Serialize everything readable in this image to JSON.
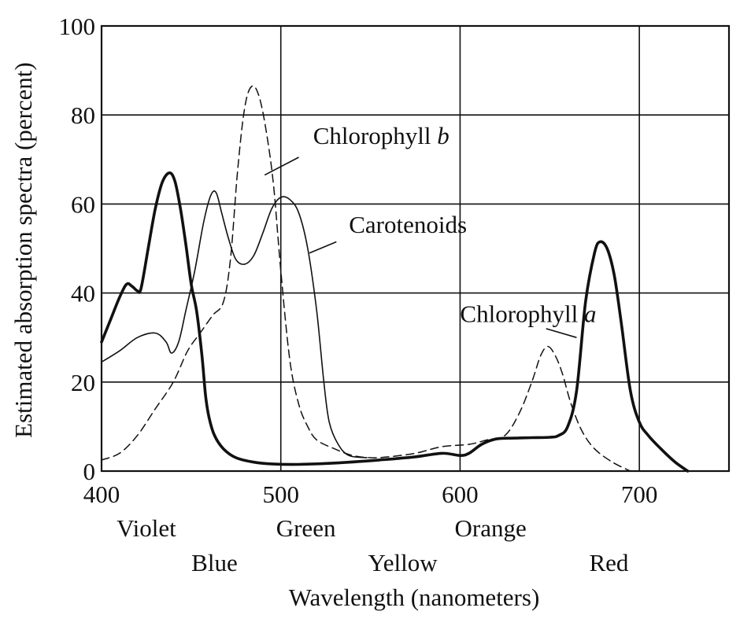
{
  "chart_data": {
    "type": "line",
    "xlabel": "Wavelength (nanometers)",
    "ylabel": "Estimated absorption spectra (percent)",
    "xlim": [
      400,
      750
    ],
    "ylim": [
      0,
      100
    ],
    "x_ticks": [
      400,
      500,
      600,
      700
    ],
    "y_ticks": [
      0,
      20,
      40,
      60,
      80,
      100
    ],
    "grid": true,
    "color_bands": {
      "row1": [
        {
          "label": "Violet",
          "x": 425
        },
        {
          "label": "Green",
          "x": 514
        },
        {
          "label": "Orange",
          "x": 617
        }
      ],
      "row2": [
        {
          "label": "Blue",
          "x": 463
        },
        {
          "label": "Yellow",
          "x": 568
        },
        {
          "label": "Red",
          "x": 683
        }
      ]
    },
    "series": [
      {
        "name": "Chlorophyll a",
        "name_main": "Chlorophyll ",
        "name_italic": "a",
        "style": "thick-solid",
        "color": "#111111",
        "points": [
          [
            400,
            29
          ],
          [
            405,
            34
          ],
          [
            410,
            39
          ],
          [
            414,
            42
          ],
          [
            417,
            41.5
          ],
          [
            420,
            40.5
          ],
          [
            422,
            41
          ],
          [
            426,
            50
          ],
          [
            430,
            59
          ],
          [
            434,
            65
          ],
          [
            438,
            67
          ],
          [
            441,
            65
          ],
          [
            444,
            59
          ],
          [
            447,
            51
          ],
          [
            450,
            42
          ],
          [
            453,
            36
          ],
          [
            456,
            26
          ],
          [
            458,
            17
          ],
          [
            460,
            12
          ],
          [
            463,
            8
          ],
          [
            468,
            5
          ],
          [
            475,
            3
          ],
          [
            485,
            2
          ],
          [
            495,
            1.6
          ],
          [
            510,
            1.5
          ],
          [
            530,
            1.8
          ],
          [
            555,
            2.5
          ],
          [
            575,
            3.2
          ],
          [
            590,
            4
          ],
          [
            600,
            3.5
          ],
          [
            605,
            4
          ],
          [
            612,
            6
          ],
          [
            620,
            7.2
          ],
          [
            630,
            7.4
          ],
          [
            640,
            7.5
          ],
          [
            650,
            7.6
          ],
          [
            655,
            8
          ],
          [
            660,
            10
          ],
          [
            665,
            18
          ],
          [
            670,
            38
          ],
          [
            675,
            49
          ],
          [
            678,
            51.5
          ],
          [
            682,
            50
          ],
          [
            686,
            44
          ],
          [
            690,
            33
          ],
          [
            695,
            18
          ],
          [
            700,
            11
          ],
          [
            705,
            8
          ],
          [
            712,
            5
          ],
          [
            720,
            2
          ],
          [
            727,
            0
          ]
        ]
      },
      {
        "name": "Chlorophyll b",
        "name_main": "Chlorophyll ",
        "name_italic": "b",
        "style": "dashed",
        "color": "#111111",
        "points": [
          [
            400,
            2.5
          ],
          [
            410,
            4
          ],
          [
            420,
            8
          ],
          [
            430,
            14
          ],
          [
            440,
            20
          ],
          [
            448,
            27
          ],
          [
            455,
            31
          ],
          [
            462,
            35
          ],
          [
            468,
            38
          ],
          [
            472,
            48
          ],
          [
            476,
            68
          ],
          [
            480,
            82
          ],
          [
            484,
            86.5
          ],
          [
            488,
            84
          ],
          [
            492,
            76
          ],
          [
            496,
            64
          ],
          [
            500,
            45
          ],
          [
            505,
            25
          ],
          [
            510,
            15
          ],
          [
            515,
            10
          ],
          [
            520,
            7
          ],
          [
            530,
            5
          ],
          [
            540,
            3.5
          ],
          [
            550,
            3
          ],
          [
            560,
            3.2
          ],
          [
            575,
            4
          ],
          [
            590,
            5.5
          ],
          [
            605,
            6
          ],
          [
            615,
            7
          ],
          [
            625,
            8
          ],
          [
            633,
            13
          ],
          [
            640,
            20
          ],
          [
            645,
            26
          ],
          [
            649,
            28
          ],
          [
            653,
            26
          ],
          [
            657,
            22
          ],
          [
            662,
            15
          ],
          [
            668,
            9
          ],
          [
            675,
            5
          ],
          [
            685,
            2
          ],
          [
            695,
            0
          ]
        ]
      },
      {
        "name": "Carotenoids",
        "style": "thin-solid",
        "color": "#111111",
        "points": [
          [
            400,
            24.5
          ],
          [
            410,
            27
          ],
          [
            420,
            30
          ],
          [
            430,
            31
          ],
          [
            436,
            29
          ],
          [
            439,
            26.5
          ],
          [
            443,
            29
          ],
          [
            447,
            36
          ],
          [
            452,
            45
          ],
          [
            457,
            56
          ],
          [
            461,
            62
          ],
          [
            464,
            62.5
          ],
          [
            467,
            58
          ],
          [
            471,
            52
          ],
          [
            475,
            47.5
          ],
          [
            480,
            46.5
          ],
          [
            485,
            48.5
          ],
          [
            490,
            53.5
          ],
          [
            495,
            59
          ],
          [
            500,
            61.5
          ],
          [
            505,
            61
          ],
          [
            510,
            58
          ],
          [
            515,
            50
          ],
          [
            520,
            36
          ],
          [
            524,
            20
          ],
          [
            527,
            11
          ],
          [
            532,
            6
          ],
          [
            538,
            3.5
          ],
          [
            548,
            3
          ]
        ]
      }
    ],
    "labels": {
      "chlorophyll_b": {
        "text_main": "Chlorophyll ",
        "text_italic": "b",
        "x": 518,
        "y": 73.5,
        "leader": [
          [
            510,
            70.5
          ],
          [
            491,
            66.5
          ]
        ]
      },
      "carotenoids": {
        "text": "Carotenoids",
        "x": 538,
        "y": 53.5,
        "leader": [
          [
            531,
            51.5
          ],
          [
            516,
            49
          ]
        ]
      },
      "chlorophyll_a": {
        "text_main": "Chlorophyll ",
        "text_italic": "a",
        "x": 600,
        "y": 33.5,
        "leader": [
          [
            648,
            32
          ],
          [
            665,
            30
          ]
        ]
      }
    }
  }
}
